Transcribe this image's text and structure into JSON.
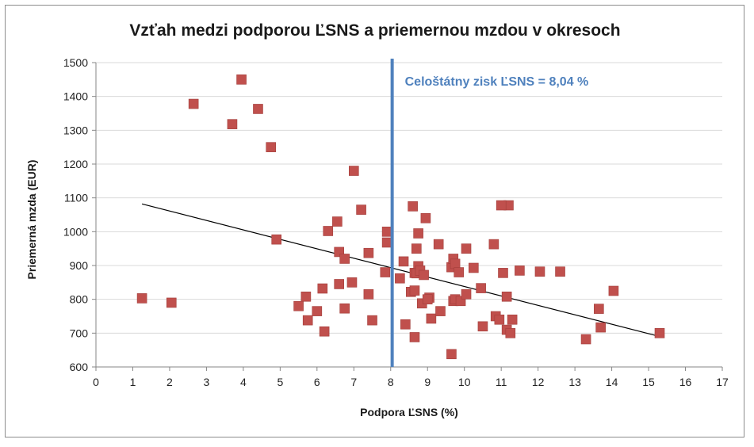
{
  "chart_data": {
    "type": "scatter",
    "title": "Vzťah medzi podporou ĽSNS a priemernou mzdou v okresoch",
    "xlabel": "Podpora ĽSNS (%)",
    "ylabel": "Priemerná mzda (EUR)",
    "xlim": [
      0,
      17
    ],
    "ylim": [
      600,
      1500
    ],
    "xticks": [
      0,
      1,
      2,
      3,
      4,
      5,
      6,
      7,
      8,
      9,
      10,
      11,
      12,
      13,
      14,
      15,
      16,
      17
    ],
    "yticks": [
      600,
      700,
      800,
      900,
      1000,
      1100,
      1200,
      1300,
      1400,
      1500
    ],
    "grid": "horizontal",
    "legend": "none",
    "marker_color": "#c0504d",
    "series": [
      {
        "x": [
          3.95,
          2.65,
          4.4,
          3.7,
          4.75,
          7.0,
          4.9,
          1.25,
          2.05,
          6.3,
          6.6,
          6.75,
          7.2,
          6.55,
          7.4,
          7.9,
          7.9,
          7.85,
          6.95,
          6.6,
          6.15,
          5.7,
          7.4,
          5.5,
          6.0,
          6.75,
          5.75,
          6.2,
          7.5,
          8.25,
          8.35,
          8.55,
          8.6,
          8.65,
          8.75,
          8.7,
          8.75,
          8.7,
          8.8,
          8.65,
          8.9,
          8.95,
          9.05,
          8.85,
          9.0,
          9.1,
          9.3,
          9.35,
          8.4,
          8.65,
          9.65,
          9.7,
          9.75,
          9.85,
          9.7,
          9.75,
          9.9,
          10.05,
          10.05,
          10.25,
          10.45,
          10.5,
          10.8,
          10.85,
          10.95,
          11.05,
          11.15,
          11.2,
          11.25,
          11.3,
          11.15,
          11.0,
          9.65,
          11.5,
          12.05,
          12.6,
          13.3,
          13.65,
          13.7,
          14.05,
          15.3
        ],
        "y": [
          1450,
          1378,
          1363,
          1318,
          1250,
          1180,
          977,
          803,
          790,
          1002,
          940,
          920,
          1065,
          1030,
          937,
          1000,
          968,
          880,
          850,
          845,
          832,
          808,
          815,
          780,
          765,
          773,
          738,
          705,
          738,
          862,
          912,
          822,
          1075,
          878,
          995,
          950,
          898,
          877,
          885,
          826,
          872,
          1040,
          805,
          788,
          800,
          743,
          963,
          765,
          726,
          688,
          895,
          920,
          905,
          880,
          795,
          800,
          795,
          950,
          815,
          893,
          833,
          720,
          963,
          750,
          740,
          878,
          710,
          1078,
          700,
          740,
          808,
          1078,
          638,
          885,
          882,
          882,
          682,
          772,
          717,
          825,
          700
        ]
      }
    ],
    "trendline": {
      "type": "linear",
      "color": "#000000",
      "x_range": [
        1.25,
        15.3
      ],
      "y_range": [
        1082,
        690
      ]
    },
    "vline": {
      "x": 8.04,
      "color": "#4f81bd",
      "label": "Celoštátny zisk ĽSNS = 8,04 %"
    }
  }
}
